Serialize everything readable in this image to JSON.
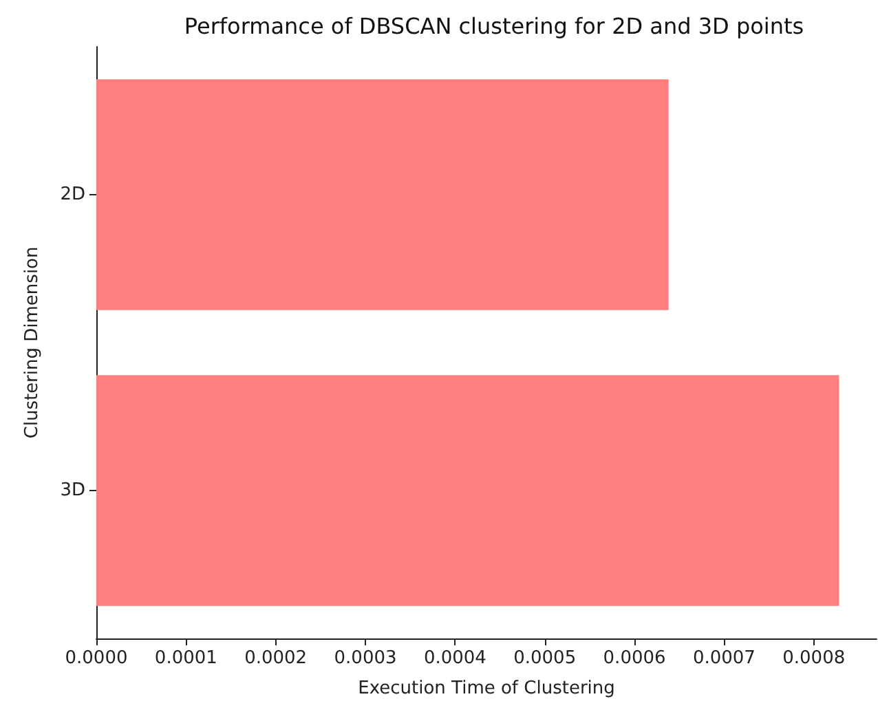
{
  "chart_data": {
    "type": "bar",
    "orientation": "horizontal",
    "title": "Performance of DBSCAN clustering for 2D and 3D points",
    "xlabel": "Execution Time of Clustering",
    "ylabel": "Clustering Dimension",
    "categories": [
      "2D",
      "3D"
    ],
    "values": [
      0.000638,
      0.000828
    ],
    "color": "#ff7f7f",
    "xlim": [
      0,
      0.00087
    ],
    "xticks": [
      {
        "value": 0,
        "label": "0.0000"
      },
      {
        "value": 0.0001,
        "label": "0.0001"
      },
      {
        "value": 0.0002,
        "label": "0.0002"
      },
      {
        "value": 0.0003,
        "label": "0.0003"
      },
      {
        "value": 0.0004,
        "label": "0.0004"
      },
      {
        "value": 0.0005,
        "label": "0.0005"
      },
      {
        "value": 0.0006,
        "label": "0.0006"
      },
      {
        "value": 0.0007,
        "label": "0.0007"
      },
      {
        "value": 0.0008,
        "label": "0.0008"
      }
    ],
    "grid": false
  }
}
